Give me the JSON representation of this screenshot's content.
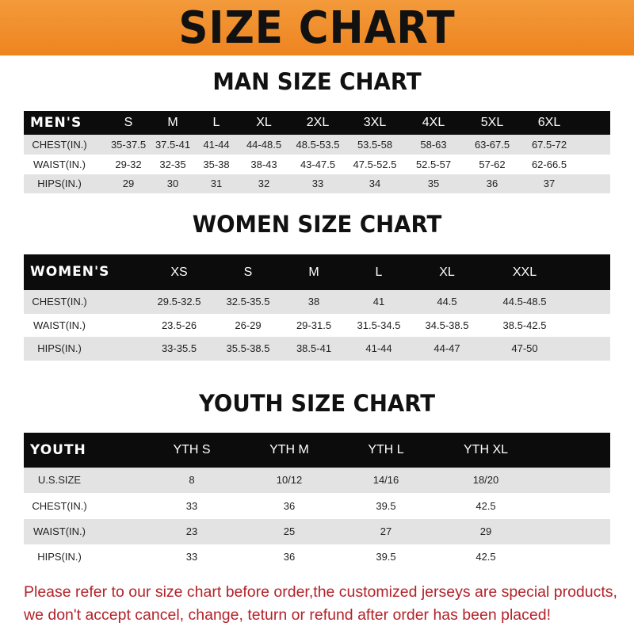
{
  "title": "SIZE CHART",
  "men": {
    "title": "MAN SIZE CHART",
    "header": "MEN'S",
    "sizes": [
      "S",
      "M",
      "L",
      "XL",
      "2XL",
      "3XL",
      "4XL",
      "5XL",
      "6XL"
    ],
    "rows": [
      {
        "label": "CHEST(IN.)",
        "values": [
          "35-37.5",
          "37.5-41",
          "41-44",
          "44-48.5",
          "48.5-53.5",
          "53.5-58",
          "58-63",
          "63-67.5",
          "67.5-72"
        ]
      },
      {
        "label": "WAIST(IN.)",
        "values": [
          "29-32",
          "32-35",
          "35-38",
          "38-43",
          "43-47.5",
          "47.5-52.5",
          "52.5-57",
          "57-62",
          "62-66.5"
        ]
      },
      {
        "label": "HIPS(IN.)",
        "values": [
          "29",
          "30",
          "31",
          "32",
          "33",
          "34",
          "35",
          "36",
          "37"
        ]
      }
    ]
  },
  "women": {
    "title": "WOMEN SIZE CHART",
    "header": "WOMEN'S",
    "sizes": [
      "XS",
      "S",
      "M",
      "L",
      "XL",
      "XXL"
    ],
    "rows": [
      {
        "label": "CHEST(IN.)",
        "values": [
          "29.5-32.5",
          "32.5-35.5",
          "38",
          "41",
          "44.5",
          "44.5-48.5"
        ]
      },
      {
        "label": "WAIST(IN.)",
        "values": [
          "23.5-26",
          "26-29",
          "29-31.5",
          "31.5-34.5",
          "34.5-38.5",
          "38.5-42.5"
        ]
      },
      {
        "label": "HIPS(IN.)",
        "values": [
          "33-35.5",
          "35.5-38.5",
          "38.5-41",
          "41-44",
          "44-47",
          "47-50"
        ]
      }
    ]
  },
  "youth": {
    "title": "YOUTH SIZE CHART",
    "header": "YOUTH",
    "sizes": [
      "YTH S",
      "YTH M",
      "YTH L",
      "YTH XL"
    ],
    "rows": [
      {
        "label": "U.S.SIZE",
        "values": [
          "8",
          "10/12",
          "14/16",
          "18/20"
        ]
      },
      {
        "label": "CHEST(IN.)",
        "values": [
          "33",
          "36",
          "39.5",
          "42.5"
        ]
      },
      {
        "label": "WAIST(IN.)",
        "values": [
          "23",
          "25",
          "27",
          "29"
        ]
      },
      {
        "label": "HIPS(IN.)",
        "values": [
          "33",
          "36",
          "39.5",
          "42.5"
        ]
      }
    ]
  },
  "notice": [
    "Please refer to our size chart before order,the customized jerseys are special products,",
    "we don't accept cancel, change, teturn or refund after order has been placed!"
  ],
  "colors": {
    "banner": "#ee8420",
    "header_row": "#0c0c0c",
    "stripe": "#e3e3e3",
    "notice": "#b3222a"
  }
}
